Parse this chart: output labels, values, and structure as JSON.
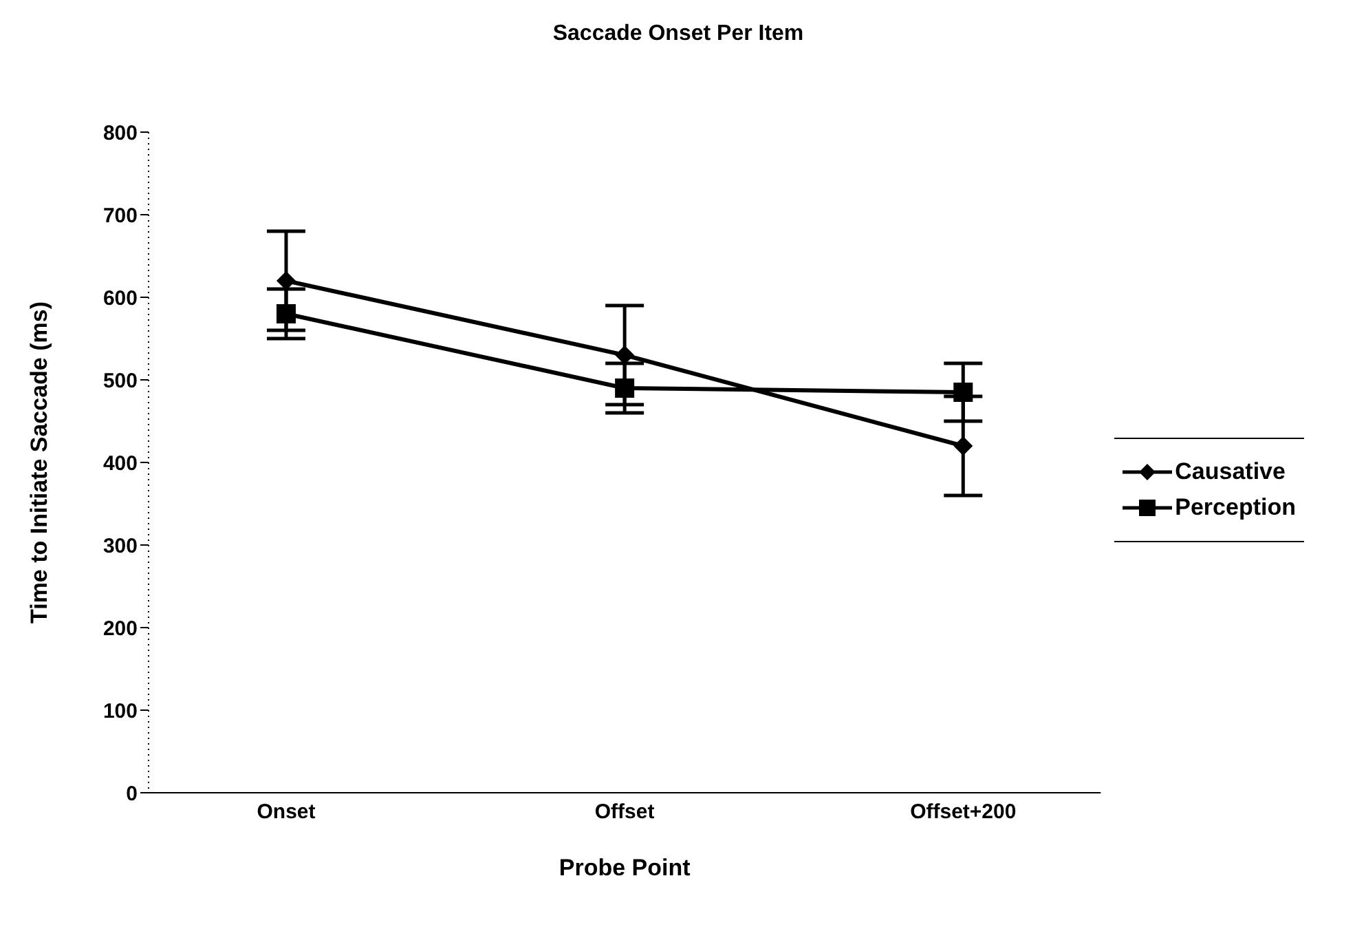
{
  "chart_data": {
    "type": "line",
    "title": "Saccade Onset Per Item",
    "xlabel": "Probe Point",
    "ylabel": "Time to Initiate Saccade (ms)",
    "categories": [
      "Onset",
      "Offset",
      "Offset+200"
    ],
    "series": [
      {
        "name": "Causative",
        "color": "#000000",
        "marker": "diamond",
        "values": [
          620,
          530,
          420
        ],
        "errors": [
          60,
          60,
          60
        ]
      },
      {
        "name": "Perception",
        "color": "#000000",
        "marker": "square",
        "values": [
          580,
          490,
          485
        ],
        "errors": [
          30,
          30,
          35
        ]
      }
    ],
    "ylim": [
      0,
      800
    ],
    "yticks": [
      0,
      100,
      200,
      300,
      400,
      500,
      600,
      700,
      800
    ],
    "legend": "right"
  }
}
